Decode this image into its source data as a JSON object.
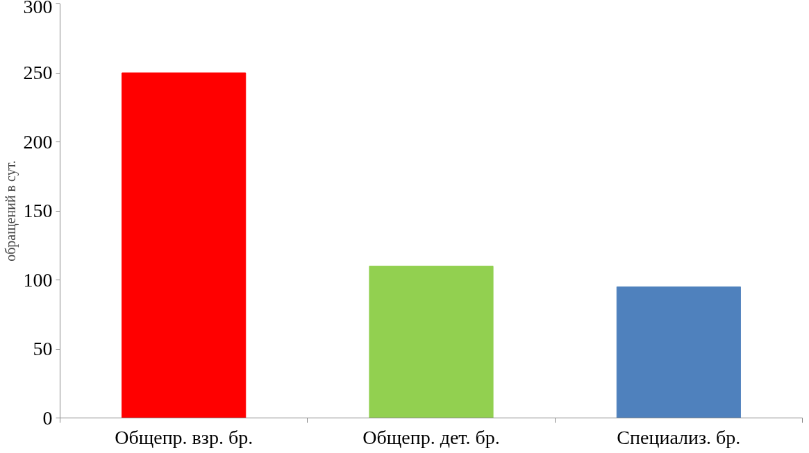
{
  "chart_data": {
    "type": "bar",
    "ylabel": "обращений в сут.",
    "categories": [
      "Общепр. взр. бр.",
      "Общепр. дет. бр.",
      "Специализ. бр."
    ],
    "values": [
      250,
      110,
      95
    ],
    "colors": [
      "#ff0000",
      "#92d050",
      "#4f81bd"
    ],
    "ylim": [
      0,
      300
    ],
    "yticks": [
      0,
      50,
      100,
      150,
      200,
      250,
      300
    ],
    "grid": false
  }
}
